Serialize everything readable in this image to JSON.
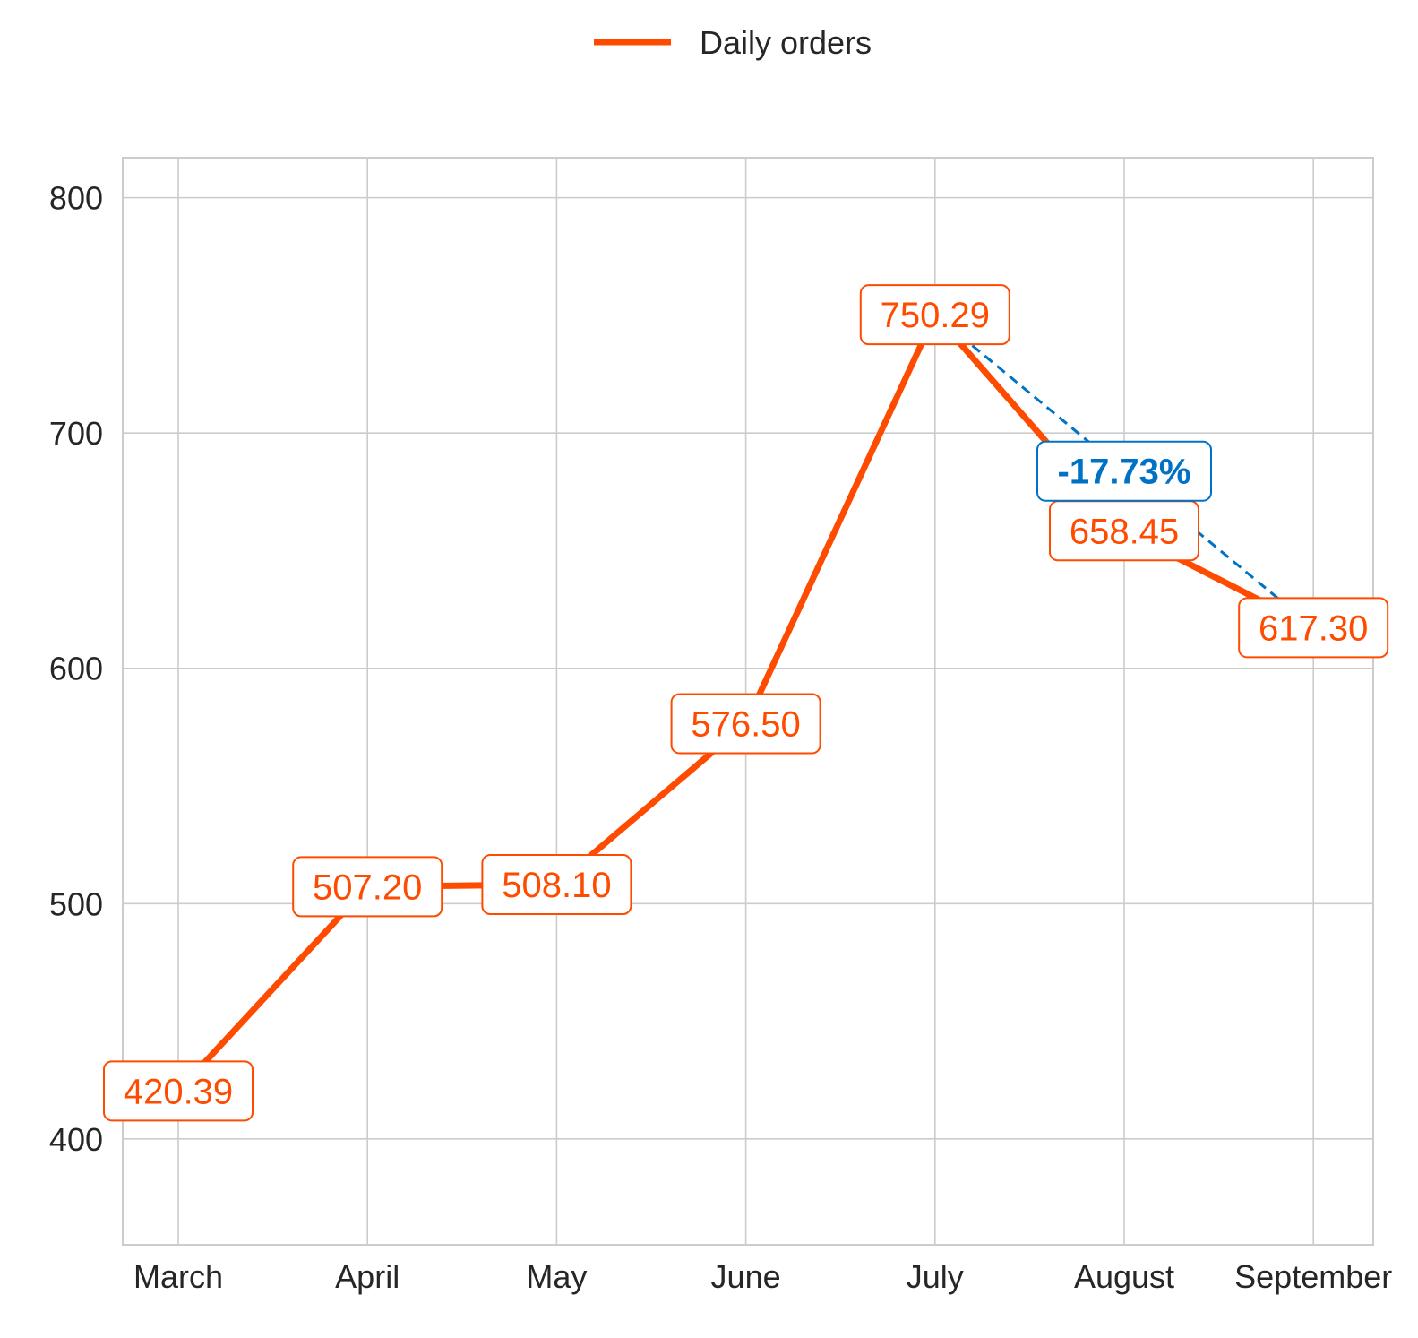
{
  "chart_data": {
    "type": "line",
    "title": "",
    "xlabel": "",
    "ylabel": "",
    "categories": [
      "March",
      "April",
      "May",
      "June",
      "July",
      "August",
      "September"
    ],
    "series": [
      {
        "name": "Daily orders",
        "color": "#ff4b00",
        "values": [
          420.39,
          507.2,
          508.1,
          576.5,
          750.29,
          658.45,
          617.3
        ],
        "labels": [
          "420.39",
          "507.20",
          "508.10",
          "576.50",
          "750.29",
          "658.45",
          "617.30"
        ]
      }
    ],
    "ylim": [
      355,
      817
    ],
    "yticks": [
      400,
      500,
      600,
      700,
      800
    ],
    "ytick_labels": [
      "400",
      "500",
      "600",
      "700",
      "800"
    ],
    "grid": true,
    "legend": {
      "position": "top-center",
      "entries": [
        "Daily orders"
      ]
    },
    "annotation": {
      "text": "-17.73%",
      "from_category": "July",
      "to_category": "September",
      "color": "#0072c6",
      "style": "dashed"
    }
  }
}
